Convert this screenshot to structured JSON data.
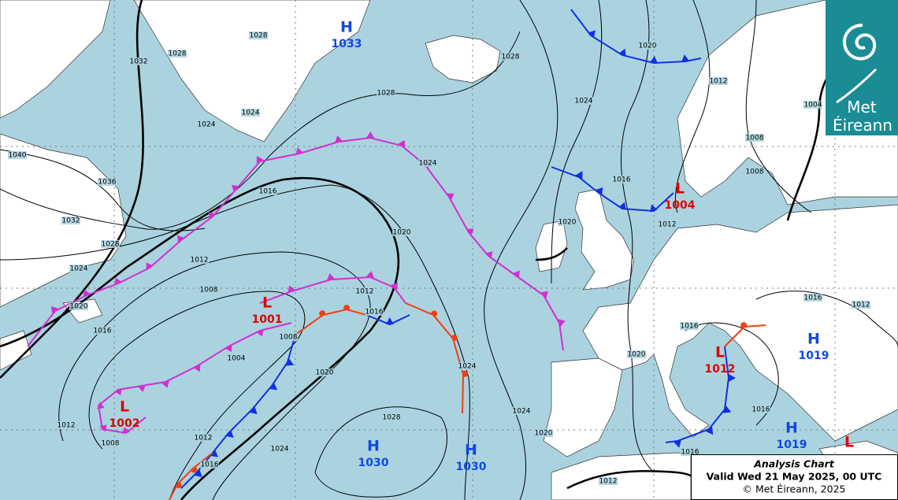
{
  "logo": {
    "line1": "Met",
    "line2": "Éireann"
  },
  "info": {
    "title": "Analysis Chart",
    "valid": "Valid Wed 21 May 2025, 00 UTC",
    "copyright": "© Met Éireann, 2025"
  },
  "centers": [
    {
      "type": "H",
      "pressure": 1033
    },
    {
      "type": "L",
      "pressure": 1004
    },
    {
      "type": "L",
      "pressure": 1001
    },
    {
      "type": "L",
      "pressure": 1002
    },
    {
      "type": "H",
      "pressure": 1030
    },
    {
      "type": "H",
      "pressure": 1030
    },
    {
      "type": "L",
      "pressure": 1012
    },
    {
      "type": "H",
      "pressure": 1019
    },
    {
      "type": "H",
      "pressure": 1019
    },
    {
      "type": "L"
    }
  ],
  "isobar_labels": [
    1028,
    1028,
    1032,
    1024,
    1024,
    1036,
    1040,
    1032,
    1028,
    1024,
    1020,
    1016,
    1012,
    1008,
    1016,
    1020,
    1024,
    1028,
    1028,
    1024,
    1020,
    1012,
    1004,
    1008,
    1008,
    1016,
    1012,
    1020,
    1016,
    1012,
    1008,
    1004,
    1020,
    1024,
    1028,
    1024,
    1020,
    1012,
    1008,
    1012,
    1016,
    1024,
    1016,
    1020,
    1016,
    1016,
    1012,
    1016,
    1012
  ]
}
